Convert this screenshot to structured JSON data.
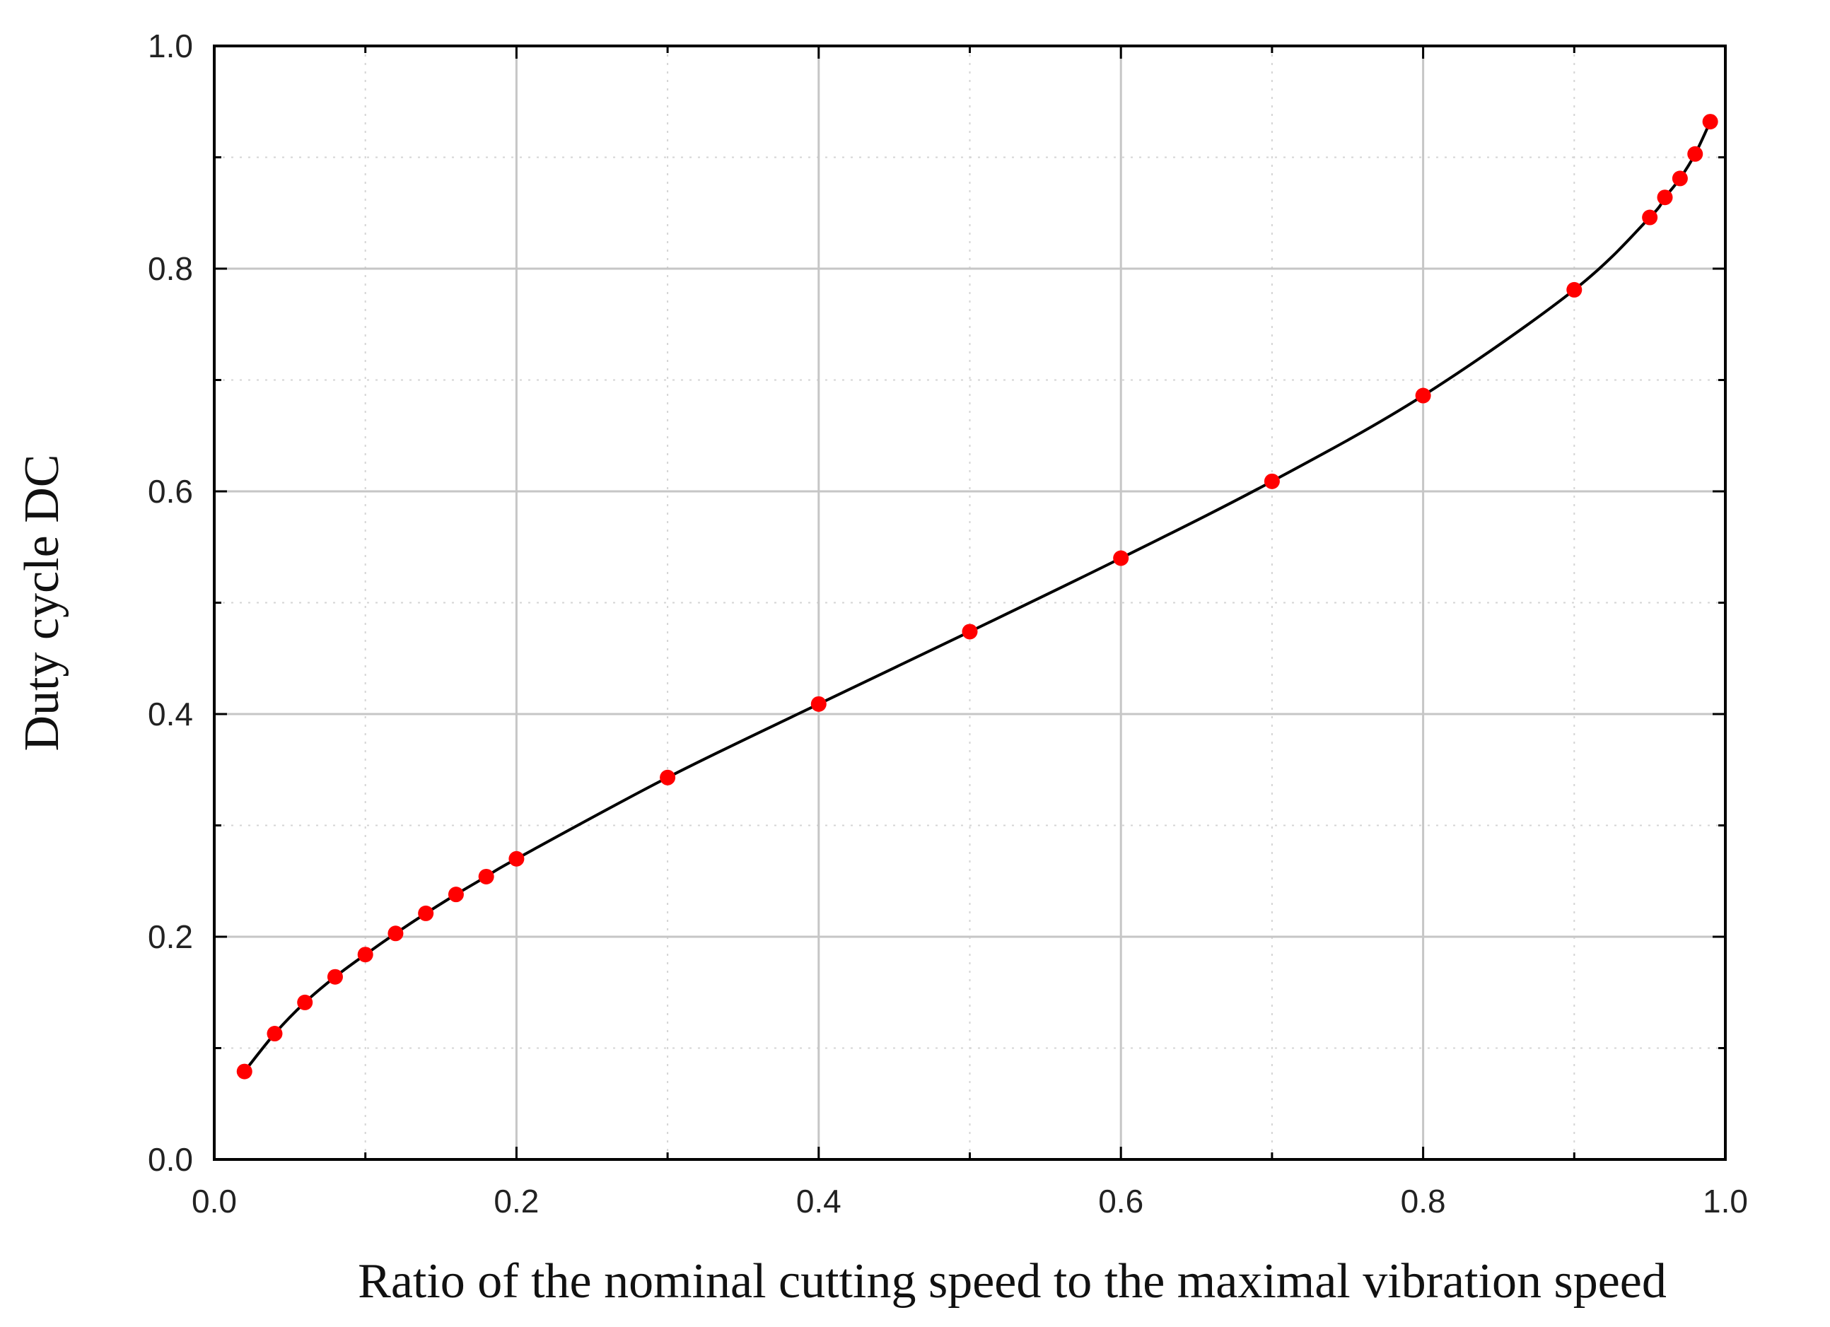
{
  "chart_data": {
    "type": "line",
    "title": "",
    "xlabel": "Ratio of the nominal cutting speed to the maximal vibration speed",
    "ylabel": "Duty cycle DC",
    "xlim": [
      0.0,
      1.0
    ],
    "ylim": [
      0.0,
      1.0
    ],
    "x_ticks": [
      0.0,
      0.2,
      0.4,
      0.6,
      0.8,
      1.0
    ],
    "x_tick_labels": [
      "0.0",
      "0.2",
      "0.4",
      "0.6",
      "0.8",
      "1.0"
    ],
    "y_ticks": [
      0.0,
      0.2,
      0.4,
      0.6,
      0.8,
      1.0
    ],
    "y_tick_labels": [
      "0.0",
      "0.2",
      "0.4",
      "0.6",
      "0.8",
      "1.0"
    ],
    "grid": true,
    "minor_grid": true,
    "legend": "none",
    "series": [
      {
        "name": "Duty cycle",
        "line_color": "#000000",
        "marker_color": "#ff0000",
        "x": [
          0.02,
          0.04,
          0.06,
          0.08,
          0.1,
          0.12,
          0.14,
          0.16,
          0.18,
          0.2,
          0.3,
          0.4,
          0.5,
          0.6,
          0.7,
          0.8,
          0.9,
          0.95,
          0.96,
          0.97,
          0.98,
          0.99
        ],
        "y": [
          0.079,
          0.113,
          0.141,
          0.164,
          0.184,
          0.203,
          0.221,
          0.238,
          0.254,
          0.27,
          0.343,
          0.409,
          0.474,
          0.54,
          0.609,
          0.686,
          0.781,
          0.846,
          0.864,
          0.881,
          0.903,
          0.932
        ]
      }
    ]
  }
}
